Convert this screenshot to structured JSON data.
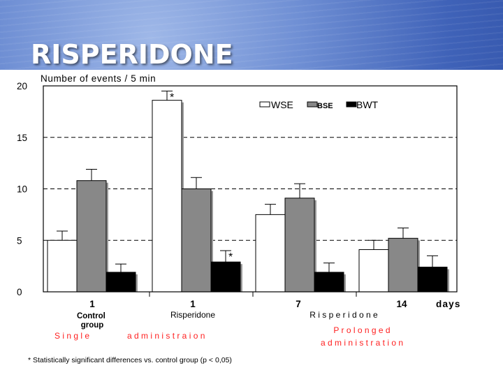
{
  "slide": {
    "title": "RISPERIDONE"
  },
  "chart_data": {
    "type": "bar",
    "ylabel": "Number of events / 5 min",
    "ylim": [
      0,
      20
    ],
    "yticks": [
      0,
      5,
      10,
      15,
      20
    ],
    "grid": "dashed horizontal",
    "categories": [
      "1",
      "1",
      "7",
      "14"
    ],
    "x_unit_label": "days",
    "series": [
      {
        "name": "WSE",
        "color": "#ffffff",
        "values": [
          5.0,
          18.6,
          7.5,
          4.1
        ],
        "errors": [
          0.9,
          0.9,
          1.0,
          0.9
        ]
      },
      {
        "name": "BSE",
        "color": "#888888",
        "values": [
          10.8,
          10.0,
          9.1,
          5.2
        ],
        "errors": [
          1.1,
          1.1,
          1.4,
          1.0
        ]
      },
      {
        "name": "BWT",
        "color": "#000000",
        "values": [
          1.9,
          2.9,
          1.9,
          2.4
        ],
        "errors": [
          0.8,
          1.1,
          0.9,
          1.1
        ]
      }
    ],
    "significance": [
      {
        "group": 1,
        "series": "WSE",
        "label": "*"
      },
      {
        "group": 1,
        "series": "BWT",
        "label": "*"
      }
    ],
    "group_labels": {
      "control": "Control group",
      "risperidone": "Risperidone",
      "prolonged_risperidone": "R i s p e r i d o n e"
    },
    "admin_labels": {
      "single_left": "S i n g l e",
      "single_right": "a d m i n i s t r a i o n",
      "prolonged_line1": "P r o l o n g e d",
      "prolonged_line2": "a d m i n i s t r a t i o n"
    },
    "footnote": "* Statistically significant differences vs. control group (p < 0,05)"
  }
}
